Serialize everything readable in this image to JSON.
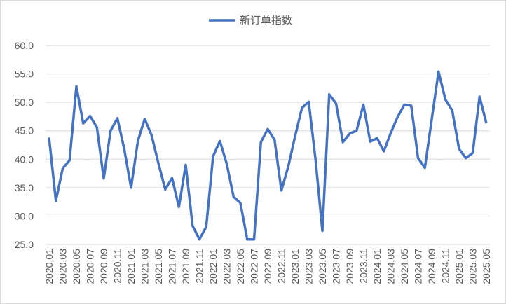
{
  "chart_data": {
    "type": "line",
    "categories": [
      "2020.01",
      null,
      "2020.03",
      null,
      "2020.05",
      null,
      "2020.07",
      null,
      "2020.09",
      null,
      "2020.11",
      null,
      "2021.01",
      null,
      "2021.03",
      null,
      "2021.05",
      null,
      "2021.07",
      null,
      "2021.09",
      null,
      "2021.11",
      null,
      "2022.01",
      null,
      "2022.03",
      null,
      "2022.05",
      null,
      "2022.07",
      null,
      "2022.09",
      null,
      "2022.11",
      null,
      "2023.01",
      null,
      "2023.03",
      null,
      "2023.05",
      null,
      "2023.07",
      null,
      "2023.09",
      null,
      "2023.11",
      null,
      "2024.01",
      null,
      "2024.03",
      null,
      "2024.05",
      null,
      "2024.07",
      null,
      "2024.09",
      null,
      "2024.11",
      null,
      "2025.01",
      null,
      "2025.03",
      null,
      "2025.05"
    ],
    "series": [
      {
        "name": "新订单指数",
        "color": "#4472c4",
        "values": [
          43.8,
          32.7,
          38.4,
          39.8,
          52.8,
          46.3,
          47.6,
          45.6,
          36.6,
          45.0,
          47.2,
          41.8,
          35.0,
          43.2,
          47.1,
          44.2,
          39.3,
          34.7,
          36.7,
          31.6,
          39.0,
          28.3,
          25.9,
          28.1,
          40.5,
          43.2,
          39.2,
          33.4,
          32.3,
          25.9,
          25.9,
          43.0,
          45.3,
          43.4,
          34.5,
          38.7,
          44.0,
          49.0,
          50.1,
          39.9,
          27.4,
          51.4,
          49.8,
          43.0,
          44.5,
          45.0,
          49.6,
          43.1,
          43.7,
          41.4,
          44.6,
          47.4,
          49.6,
          49.4,
          40.2,
          38.5,
          47.0,
          55.4,
          50.5,
          48.6,
          41.8,
          40.2,
          41.1,
          51.0,
          46.3
        ]
      }
    ],
    "ylim": [
      25,
      60
    ],
    "yticks": [
      {
        "value": 25,
        "label": "25.0"
      },
      {
        "value": 30,
        "label": "30.0"
      },
      {
        "value": 35,
        "label": "35.0"
      },
      {
        "value": 40,
        "label": "40.0"
      },
      {
        "value": 45,
        "label": "45.0"
      },
      {
        "value": 50,
        "label": "50.0"
      },
      {
        "value": 55,
        "label": "55.0"
      },
      {
        "value": 60,
        "label": "60.0"
      }
    ],
    "grid": true,
    "legend": "top"
  }
}
